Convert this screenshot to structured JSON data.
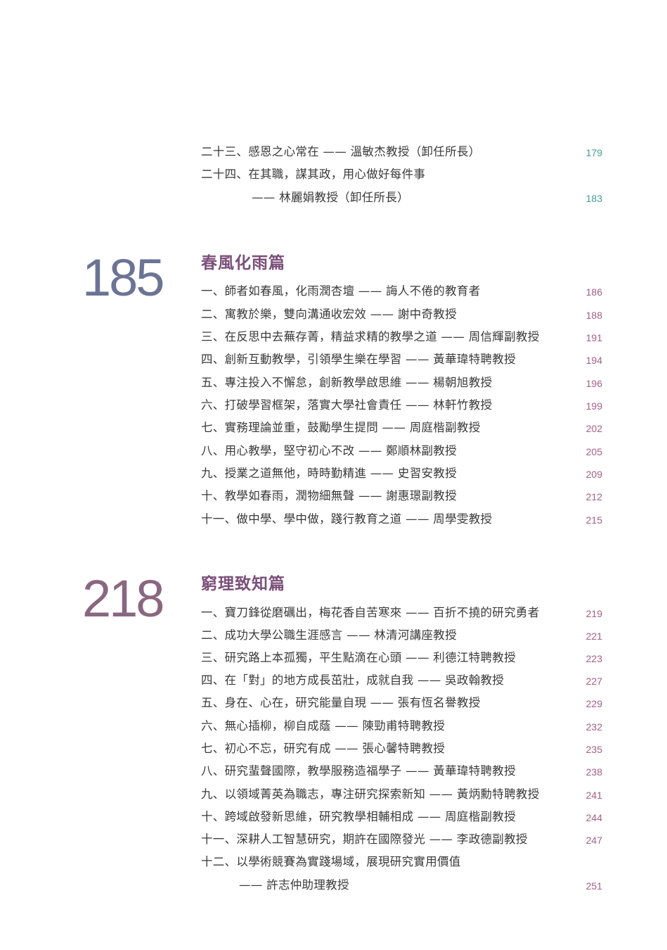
{
  "prev_section": {
    "entries": [
      {
        "text": "二十三、感恩之心常在 —— 溫敏杰教授（卸任所長）",
        "page": "179"
      },
      {
        "text": "二十四、在其職，謀其政，用心做好每件事",
        "page": ""
      },
      {
        "text": "—— 林麗娟教授（卸任所長）",
        "page": "183"
      }
    ]
  },
  "section1": {
    "number": "185",
    "title": "春風化雨篇",
    "entries": [
      {
        "text": "一、師者如春風，化雨潤杏壇 —— 誨人不倦的教育者",
        "page": "186"
      },
      {
        "text": "二、寓教於樂，雙向溝通收宏效 —— 謝中奇教授",
        "page": "188"
      },
      {
        "text": "三、在反思中去蕪存菁，精益求精的教學之道 —— 周信輝副教授",
        "page": "191"
      },
      {
        "text": "四、創新互動教學，引領學生樂在學習 —— 黃華瑋特聘教授",
        "page": "194"
      },
      {
        "text": "五、專注投入不懈怠，創新教學啟思維 —— 楊朝旭教授",
        "page": "196"
      },
      {
        "text": "六、打破學習框架，落實大學社會責任 —— 林軒竹教授",
        "page": "199"
      },
      {
        "text": "七、實務理論並重，鼓勵學生提問 —— 周庭楷副教授",
        "page": "202"
      },
      {
        "text": "八、用心教學，堅守初心不改 —— 鄭順林副教授",
        "page": "205"
      },
      {
        "text": "九、授業之道無他，時時勤精進 —— 史習安教授",
        "page": "209"
      },
      {
        "text": "十、教學如春雨，潤物細無聲 —— 謝惠璟副教授",
        "page": "212"
      },
      {
        "text": "十一、做中學、學中做，踐行教育之道 —— 周學雯教授",
        "page": "215"
      }
    ]
  },
  "section2": {
    "number": "218",
    "title": "窮理致知篇",
    "entries": [
      {
        "text": "一、寶刀鋒從磨礪出，梅花香自苦寒來 —— 百折不撓的研究勇者",
        "page": "219"
      },
      {
        "text": "二、成功大學公職生涯感言 —— 林清河講座教授",
        "page": "221"
      },
      {
        "text": "三、研究路上本孤獨，平生點滴在心頭 —— 利德江特聘教授",
        "page": "223"
      },
      {
        "text": "四、在「對」的地方成長茁壯，成就自我 —— 吳政翰教授",
        "page": "227"
      },
      {
        "text": "五、身在、心在，研究能量自現 —— 張有恆名譽教授",
        "page": "229"
      },
      {
        "text": "六、無心插柳，柳自成蔭 —— 陳勁甫特聘教授",
        "page": "232"
      },
      {
        "text": "七、初心不忘，研究有成 —— 張心馨特聘教授",
        "page": "235"
      },
      {
        "text": "八、研究蜚聲國際，教學服務造福學子 —— 黃華瑋特聘教授",
        "page": "238"
      },
      {
        "text": "九、以領域菁英為職志，專注研究探索新知 —— 黃炳勳特聘教授",
        "page": "241"
      },
      {
        "text": "十、跨域啟發新思維，研究教學相輔相成 —— 周庭楷副教授",
        "page": "244"
      },
      {
        "text": "十一、深耕人工智慧研究，期許在國際發光 —— 李政德副教授",
        "page": "247"
      },
      {
        "text": "十二、以學術競賽為實踐場域，展現研究實用價值",
        "page": ""
      },
      {
        "text": "—— 許志仲助理教授",
        "page": "251"
      }
    ]
  },
  "colors": {
    "page_teal": "#3f9f8d",
    "page_plum": "#a45f86",
    "title": "#7b4f79",
    "number_blue": "#6b7494",
    "number_plum": "#8a6781"
  }
}
